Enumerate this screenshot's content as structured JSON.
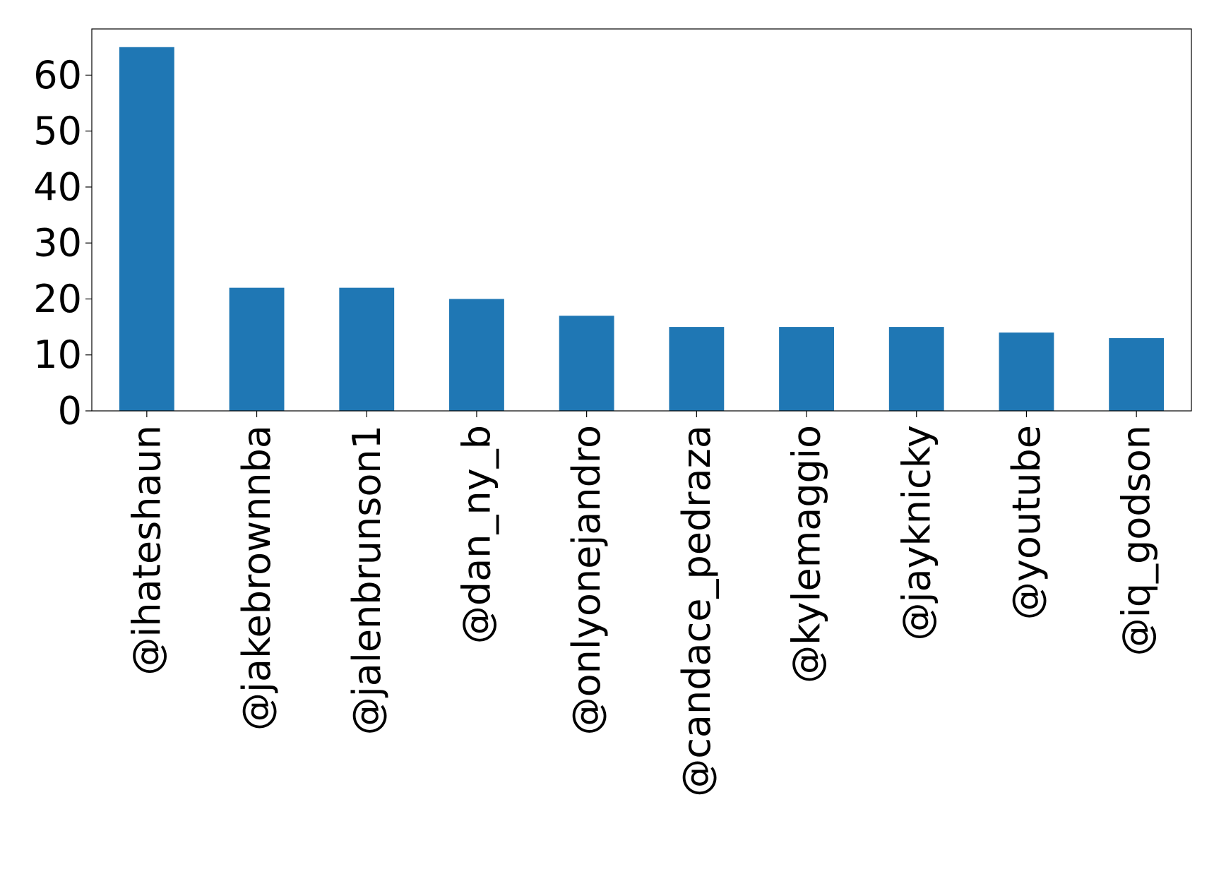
{
  "chart_data": {
    "type": "bar",
    "title": "",
    "xlabel": "",
    "ylabel": "",
    "categories": [
      "@ihateshaun",
      "@jakebrownnba",
      "@jalenbrunson1",
      "@dan_ny_b",
      "@onlyonejandro",
      "@candace_pedraza",
      "@kylemaggio",
      "@jayknicky",
      "@youtube",
      "@iq_godson"
    ],
    "values": [
      65,
      22,
      22,
      20,
      17,
      15,
      15,
      15,
      14,
      13
    ],
    "ylim": [
      0,
      68.25
    ],
    "yticks": [
      0,
      10,
      20,
      30,
      40,
      50,
      60
    ],
    "grid": false,
    "legend": "none",
    "bar_color": "#1f77b4"
  }
}
